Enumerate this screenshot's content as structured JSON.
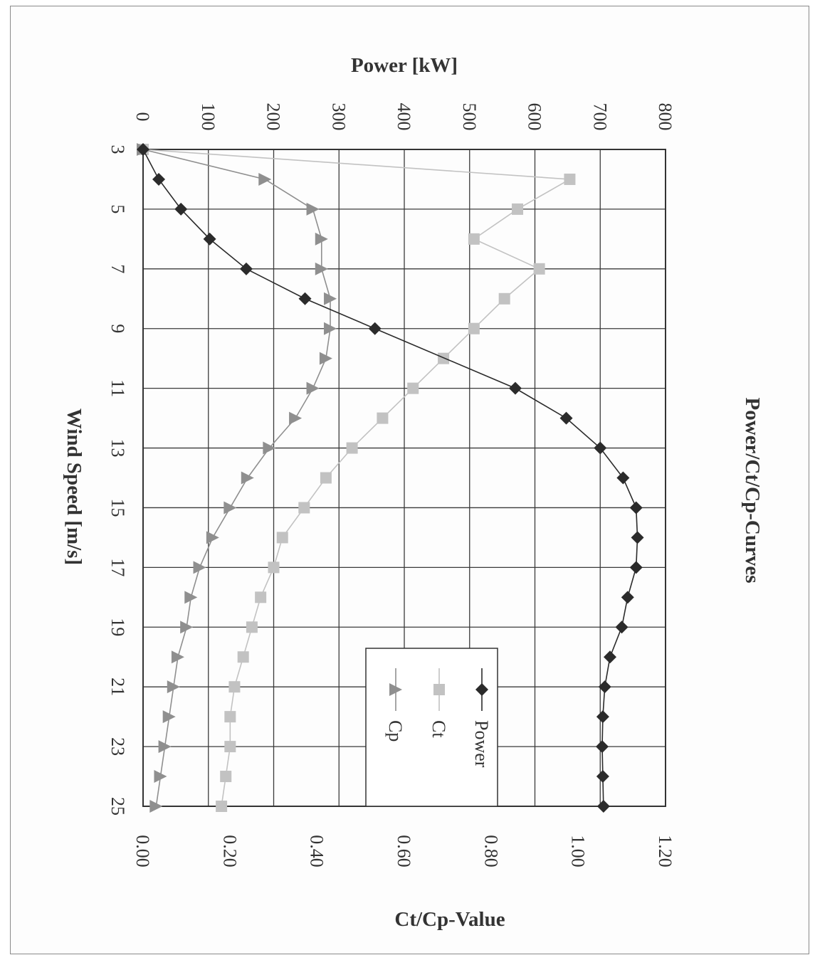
{
  "chart_data": {
    "type": "line",
    "orientation": "rotated-90-clockwise",
    "title": "Power/Ct/Cp-Curves",
    "xlabel": "Wind Speed [m/s]",
    "ylabel_left": "Power [kW]",
    "ylabel_right": "Ct/Cp-Value",
    "x_ticks": [
      "3",
      "5",
      "7",
      "9",
      "11",
      "13",
      "15",
      "17",
      "19",
      "21",
      "23",
      "25"
    ],
    "y_left_ticks": [
      "0",
      "100",
      "200",
      "300",
      "400",
      "500",
      "600",
      "700",
      "800"
    ],
    "y_right_ticks": [
      "0.00",
      "0.20",
      "0.40",
      "0.60",
      "0.80",
      "1.00",
      "1.20"
    ],
    "xlim": [
      3,
      25
    ],
    "ylim_left": [
      0,
      800
    ],
    "ylim_right": [
      0,
      1.2
    ],
    "grid": true,
    "legend_position": "inside, near high wind speeds",
    "x": [
      3,
      4,
      5,
      6,
      7,
      8,
      9,
      10,
      11,
      12,
      13,
      14,
      15,
      16,
      17,
      18,
      19,
      20,
      21,
      22,
      23,
      24,
      25
    ],
    "series": [
      {
        "name": "Power",
        "axis": "left",
        "marker": "diamond",
        "color": "#2b2b2b",
        "values": [
          0,
          24,
          58,
          102,
          158,
          248,
          355,
          null,
          570,
          648,
          700,
          735,
          755,
          757,
          755,
          742,
          733,
          715,
          707,
          704,
          703,
          704,
          705
        ]
      },
      {
        "name": "Ct",
        "axis": "right",
        "marker": "square",
        "color": "#c2c2c2",
        "values": [
          0.0,
          0.98,
          0.86,
          0.76,
          0.91,
          0.83,
          0.76,
          0.69,
          0.62,
          0.55,
          0.48,
          0.42,
          0.37,
          0.32,
          0.3,
          0.27,
          0.25,
          0.23,
          0.21,
          0.2,
          0.2,
          0.19,
          0.18
        ]
      },
      {
        "name": "Cp",
        "axis": "right",
        "marker": "triangle",
        "color": "#8f8f8f",
        "values": [
          0.0,
          0.28,
          0.39,
          0.41,
          0.41,
          0.43,
          0.43,
          0.42,
          0.39,
          0.35,
          0.29,
          0.24,
          0.2,
          0.16,
          0.13,
          0.11,
          0.1,
          0.08,
          0.07,
          0.06,
          0.05,
          0.04,
          0.03
        ]
      }
    ]
  }
}
